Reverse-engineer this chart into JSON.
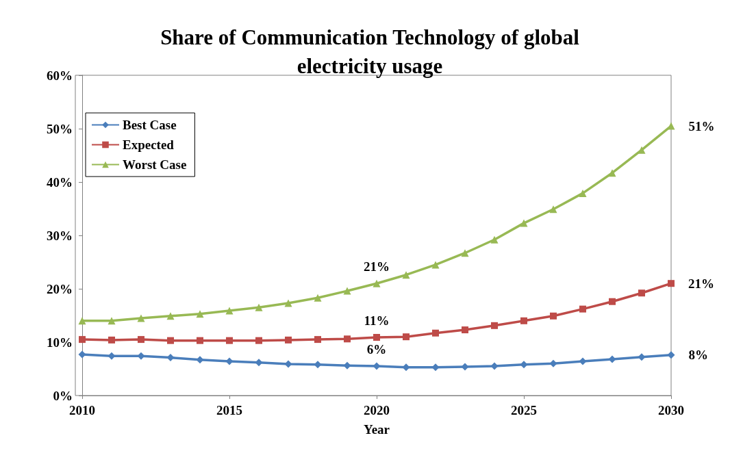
{
  "chart_data": {
    "type": "line",
    "title": "Share of Communication Technology of global\nelectricity usage",
    "xlabel": "Year",
    "x": [
      2010,
      2011,
      2012,
      2013,
      2014,
      2015,
      2016,
      2017,
      2018,
      2019,
      2020,
      2021,
      2022,
      2023,
      2024,
      2025,
      2026,
      2027,
      2028,
      2029,
      2030
    ],
    "series": [
      {
        "name": "Best Case",
        "color": "#4a7ebb",
        "marker": "diamond",
        "values": [
          7.7,
          7.4,
          7.4,
          7.1,
          6.7,
          6.4,
          6.2,
          5.9,
          5.8,
          5.6,
          5.5,
          5.3,
          5.3,
          5.4,
          5.5,
          5.8,
          6.0,
          6.4,
          6.8,
          7.2,
          7.6
        ],
        "value_labels": [
          null,
          null,
          null,
          null,
          null,
          null,
          null,
          null,
          null,
          null,
          "6%",
          null,
          null,
          null,
          null,
          null,
          null,
          null,
          null,
          null,
          "8%"
        ]
      },
      {
        "name": "Expected",
        "color": "#be4b48",
        "marker": "square",
        "values": [
          10.5,
          10.4,
          10.5,
          10.3,
          10.3,
          10.3,
          10.3,
          10.4,
          10.5,
          10.6,
          10.9,
          11.0,
          11.7,
          12.3,
          13.1,
          14.0,
          14.9,
          16.2,
          17.6,
          19.2,
          21.0
        ],
        "value_labels": [
          null,
          null,
          null,
          null,
          null,
          null,
          null,
          null,
          null,
          null,
          "11%",
          null,
          null,
          null,
          null,
          null,
          null,
          null,
          null,
          null,
          "21%"
        ]
      },
      {
        "name": "Worst Case",
        "color": "#98b954",
        "marker": "triangle",
        "values": [
          14.0,
          14.0,
          14.5,
          14.9,
          15.3,
          15.9,
          16.5,
          17.3,
          18.3,
          19.6,
          21.0,
          22.6,
          24.5,
          26.7,
          29.2,
          32.3,
          34.9,
          37.9,
          41.7,
          46.0,
          50.5
        ],
        "value_labels": [
          null,
          null,
          null,
          null,
          null,
          null,
          null,
          null,
          null,
          null,
          "21%",
          null,
          null,
          null,
          null,
          null,
          null,
          null,
          null,
          null,
          "51%"
        ]
      }
    ],
    "xlim": [
      2010,
      2030
    ],
    "xticks": [
      2010,
      2015,
      2020,
      2025,
      2030
    ],
    "ylim": [
      0,
      60
    ],
    "yticks": [
      {
        "value": 0,
        "label": "0%"
      },
      {
        "value": 10,
        "label": "10%"
      },
      {
        "value": 20,
        "label": "20%"
      },
      {
        "value": 30,
        "label": "30%"
      },
      {
        "value": 40,
        "label": "40%"
      },
      {
        "value": 50,
        "label": "50%"
      },
      {
        "value": 60,
        "label": "60%"
      }
    ],
    "legend": "top left",
    "grid": false,
    "line_style": "solid"
  }
}
